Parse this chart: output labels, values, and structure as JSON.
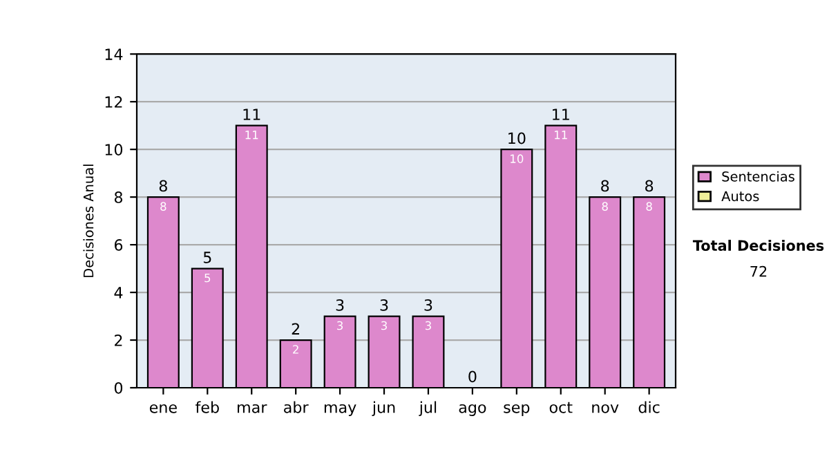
{
  "chart_data": {
    "type": "bar",
    "stacked": true,
    "ylabel": "Decisiones Anual",
    "categories": [
      "ene",
      "feb",
      "mar",
      "abr",
      "may",
      "jun",
      "jul",
      "ago",
      "sep",
      "oct",
      "nov",
      "dic"
    ],
    "series": [
      {
        "name": "Sentencias",
        "color": "#dd88cc",
        "values": [
          8,
          5,
          11,
          2,
          3,
          3,
          3,
          0,
          10,
          11,
          8,
          8
        ],
        "value_labels": [
          "8",
          "5",
          "11",
          "2",
          "3",
          "3",
          "3",
          null,
          "10",
          "11",
          "8",
          "8"
        ]
      },
      {
        "name": "Autos",
        "color": "#eeee99",
        "values": [
          0,
          0,
          0,
          0,
          0,
          0,
          0,
          0,
          0,
          0,
          0,
          0
        ]
      }
    ],
    "totals": [
      "8",
      "5",
      "11",
      "2",
      "3",
      "3",
      "3",
      "0",
      "10",
      "11",
      "8",
      "8"
    ],
    "ylim": [
      0,
      14
    ],
    "yticks": [
      0,
      2,
      4,
      6,
      8,
      10,
      12,
      14
    ],
    "grid": "y",
    "legend": "right",
    "annotations": [
      "Total Decisiones",
      "72"
    ]
  }
}
